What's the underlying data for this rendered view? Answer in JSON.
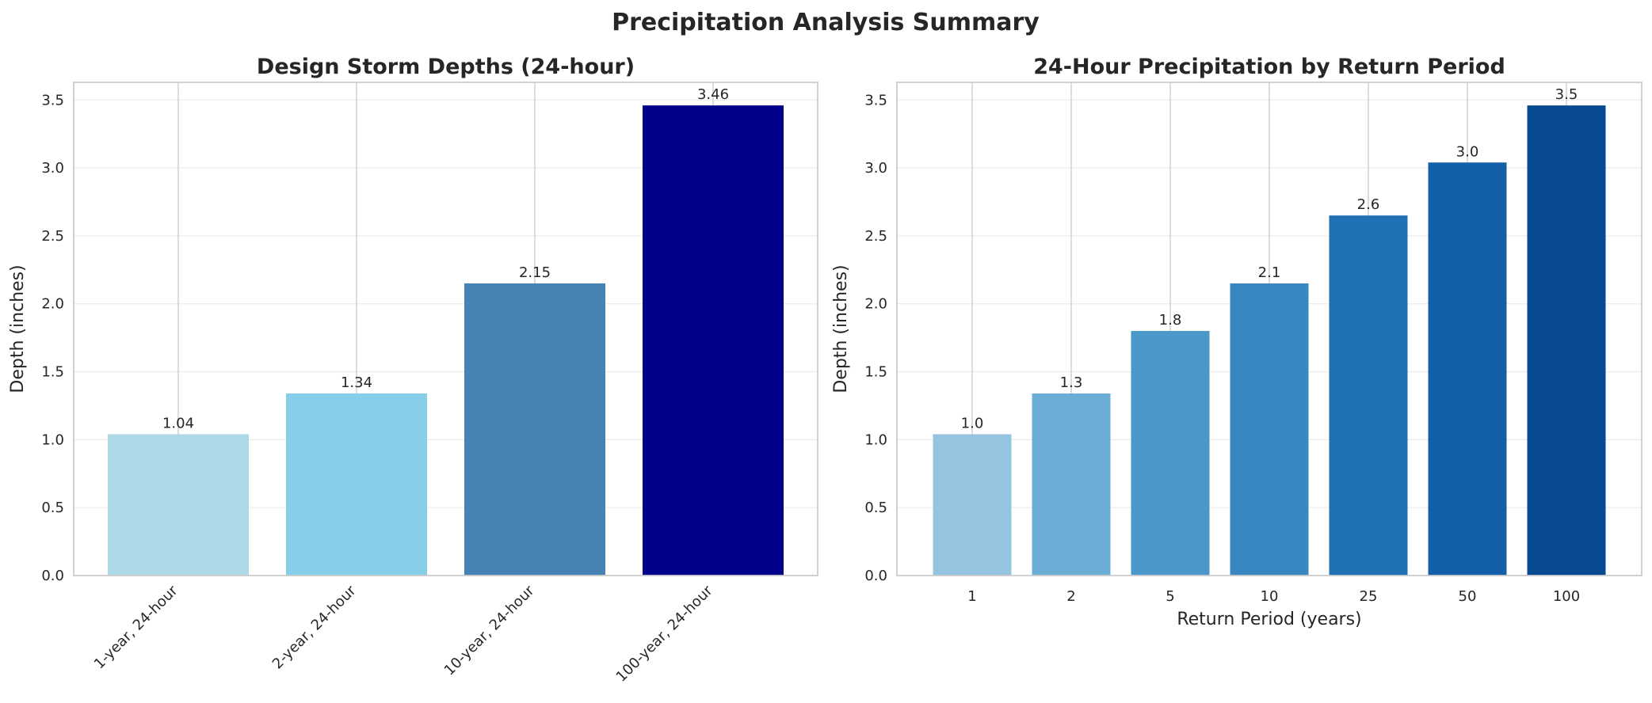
{
  "suptitle": "Precipitation Analysis Summary",
  "chart_data": [
    {
      "type": "bar",
      "title": "Design Storm Depths (24-hour)",
      "xlabel": "",
      "ylabel": "Depth (inches)",
      "categories": [
        "1-year, 24-hour",
        "2-year, 24-hour",
        "10-year, 24-hour",
        "100-year, 24-hour"
      ],
      "values": [
        1.04,
        1.34,
        2.15,
        3.46
      ],
      "value_labels": [
        "1.04",
        "1.34",
        "2.15",
        "3.46"
      ],
      "colors": [
        "#add8e6",
        "#87ceeb",
        "#4682b4",
        "#00008b"
      ],
      "ylim": [
        0,
        3.63
      ],
      "yticks": [
        0.0,
        0.5,
        1.0,
        1.5,
        2.0,
        2.5,
        3.0,
        3.5
      ],
      "ytick_labels": [
        "0.0",
        "0.5",
        "1.0",
        "1.5",
        "2.0",
        "2.5",
        "3.0",
        "3.5"
      ],
      "xtick_rotation": 45,
      "grid": true
    },
    {
      "type": "bar",
      "title": "24-Hour Precipitation by Return Period",
      "xlabel": "Return Period (years)",
      "ylabel": "Depth (inches)",
      "categories": [
        "1",
        "2",
        "5",
        "10",
        "25",
        "50",
        "100"
      ],
      "values": [
        1.04,
        1.34,
        1.8,
        2.15,
        2.65,
        3.04,
        3.46
      ],
      "value_labels": [
        "1.0",
        "1.3",
        "1.8",
        "2.1",
        "2.6",
        "3.0",
        "3.5"
      ],
      "colors": [
        "#94c4df",
        "#6aaed6",
        "#4a98c9",
        "#3887c0",
        "#2070b4",
        "#1460a8",
        "#084a91"
      ],
      "ylim": [
        0,
        3.63
      ],
      "yticks": [
        0.0,
        0.5,
        1.0,
        1.5,
        2.0,
        2.5,
        3.0,
        3.5
      ],
      "ytick_labels": [
        "0.0",
        "0.5",
        "1.0",
        "1.5",
        "2.0",
        "2.5",
        "3.0",
        "3.5"
      ],
      "xtick_rotation": 0,
      "grid": true
    }
  ]
}
